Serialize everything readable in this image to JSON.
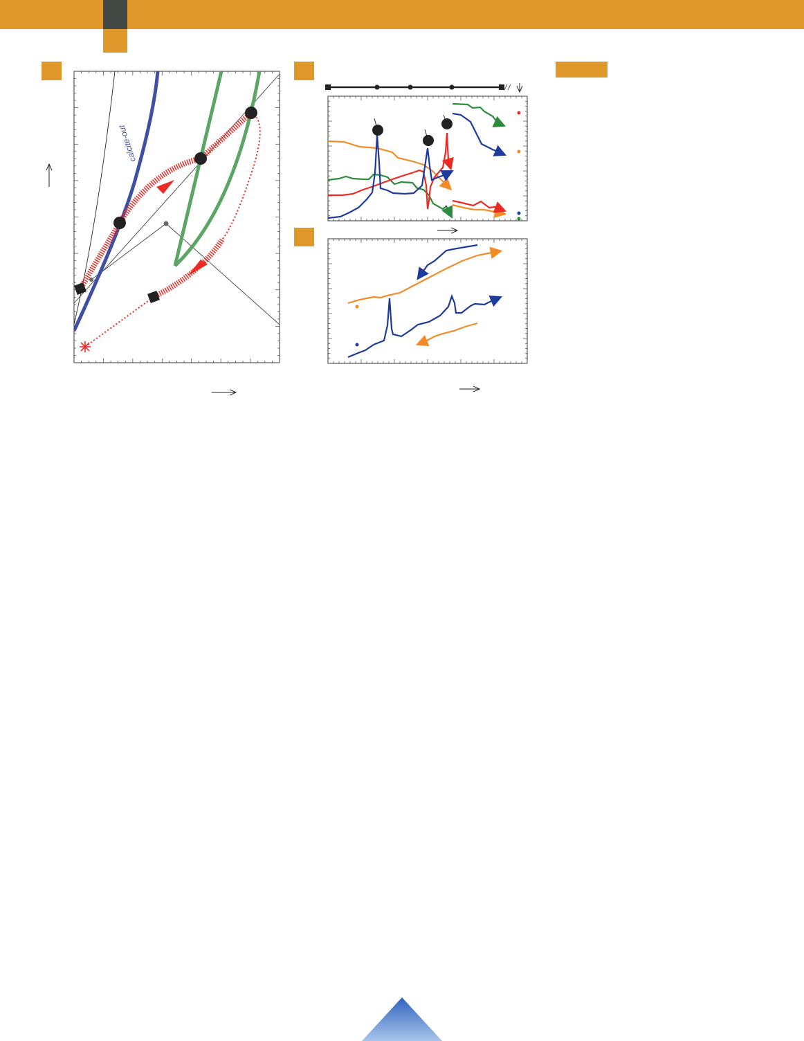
{
  "curve_labels": {
    "calcite_out": "calcite-out"
  },
  "colors": {
    "accent": "#E0982B",
    "dark_tab": "#434a45",
    "blue": "#3F4FA1",
    "navy": "#1E3A9A",
    "green": "#5BA565",
    "dark_green": "#2E8B3E",
    "red": "#EC2A24",
    "orange": "#F28C28",
    "black": "#222222"
  },
  "icons": {
    "up_arrow": "arrow-up-icon",
    "right_arrow": "arrow-right-icon",
    "down_arrow": "arrow-down-icon",
    "star": "asterisk-icon",
    "triangle": "triangle-icon"
  }
}
